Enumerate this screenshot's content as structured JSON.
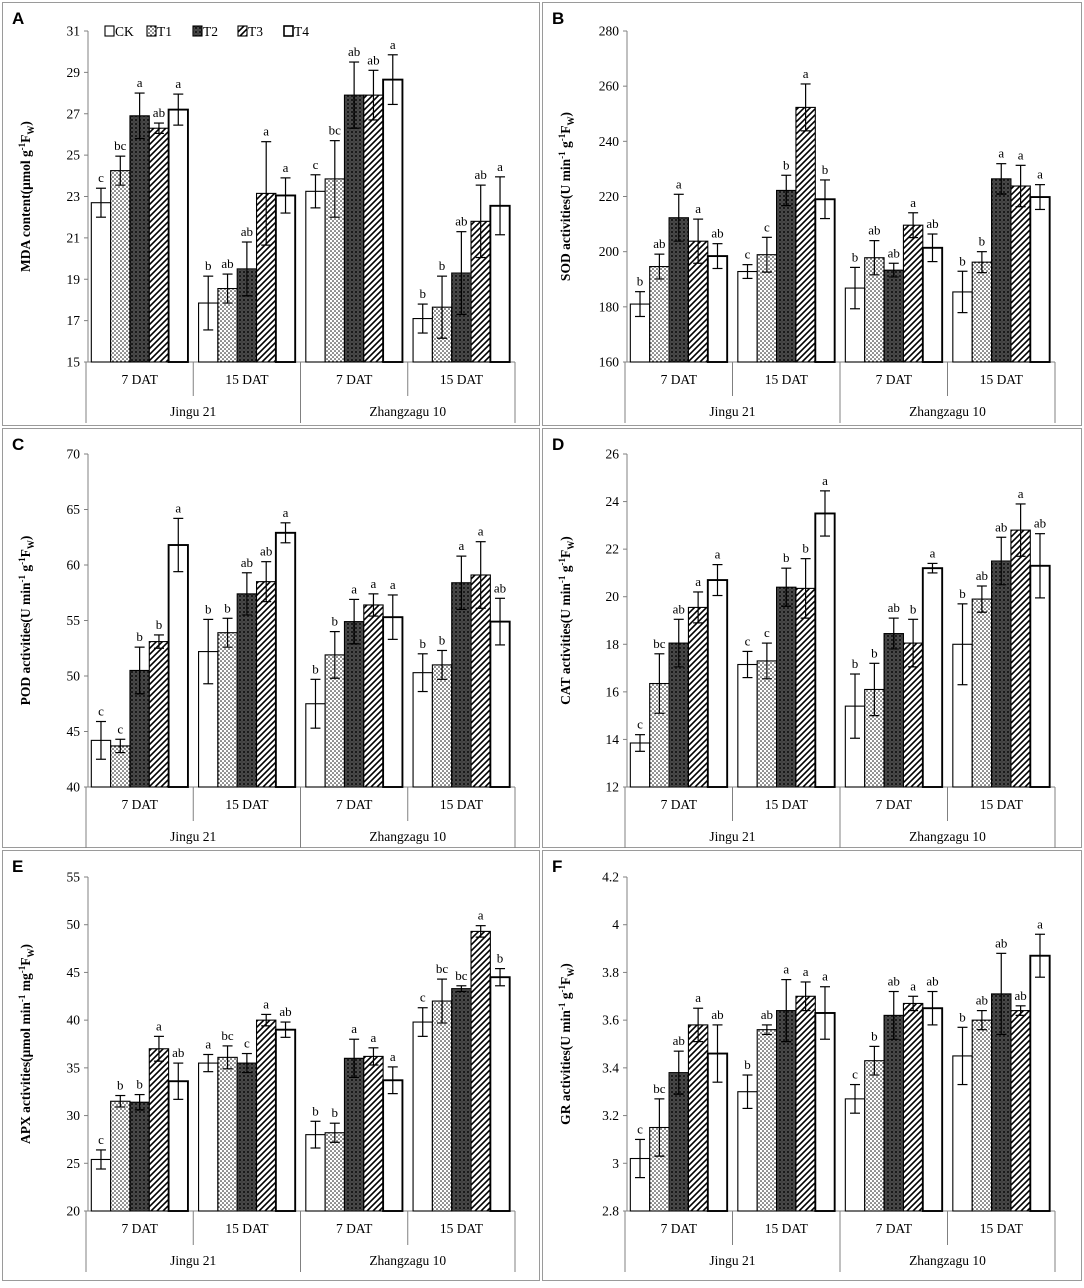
{
  "legend": [
    "CK",
    "T1",
    "T2",
    "T3",
    "T4"
  ],
  "chart_data": [
    {
      "panel": "A",
      "type": "bar",
      "ylabel_main": "MDA content(μmol g",
      "ylabel_sup": "-1",
      "ylabel_F": "F",
      "ylabel_sub": "W",
      "ylabel_end": ")",
      "ylim": [
        15,
        31
      ],
      "yticks": [
        "15",
        "17",
        "19",
        "21",
        "23",
        "25",
        "27",
        "29",
        "31"
      ],
      "groups": [
        "7 DAT",
        "15 DAT",
        "7 DAT",
        "15 DAT"
      ],
      "cultivars": [
        "Jingu 21",
        "Zhangzagu 10"
      ],
      "series": [
        {
          "name": "CK",
          "values": [
            22.7,
            17.85,
            23.25,
            17.1
          ],
          "errors": [
            0.7,
            1.3,
            0.8,
            0.7
          ],
          "letters": [
            "c",
            "b",
            "c",
            "b"
          ]
        },
        {
          "name": "T1",
          "values": [
            24.25,
            18.55,
            23.85,
            17.65
          ],
          "errors": [
            0.7,
            0.7,
            1.85,
            1.5
          ],
          "letters": [
            "bc",
            "ab",
            "bc",
            "b"
          ]
        },
        {
          "name": "T2",
          "values": [
            26.9,
            19.5,
            27.9,
            19.3
          ],
          "errors": [
            1.1,
            1.3,
            1.6,
            2.0
          ],
          "letters": [
            "a",
            "ab",
            "ab",
            "ab"
          ]
        },
        {
          "name": "T3",
          "values": [
            26.3,
            23.15,
            27.9,
            21.8
          ],
          "errors": [
            0.25,
            2.5,
            1.2,
            1.75
          ],
          "letters": [
            "ab",
            "a",
            "ab",
            "ab"
          ]
        },
        {
          "name": "T4",
          "values": [
            27.2,
            23.05,
            28.65,
            22.55
          ],
          "errors": [
            0.75,
            0.85,
            1.2,
            1.4
          ],
          "letters": [
            "a",
            "a",
            "a",
            "a"
          ]
        }
      ]
    },
    {
      "panel": "B",
      "type": "bar",
      "ylabel_main": "SOD activities(U min",
      "ylabel_sup": "-1",
      "ylabel_mid": " g",
      "ylabel_sup2": "-1",
      "ylabel_F": "F",
      "ylabel_sub": "W",
      "ylabel_end": ")",
      "ylim": [
        160,
        280
      ],
      "yticks": [
        "160",
        "180",
        "200",
        "220",
        "240",
        "260",
        "280"
      ],
      "groups": [
        "7 DAT",
        "15 DAT",
        "7 DAT",
        "15 DAT"
      ],
      "cultivars": [
        "Jingu 21",
        "Zhangzagu 10"
      ],
      "series": [
        {
          "name": "CK",
          "values": [
            181,
            192.8,
            186.8,
            185.4
          ],
          "errors": [
            4.5,
            2.5,
            7.5,
            7.5
          ],
          "letters": [
            "b",
            "c",
            "b",
            "b"
          ]
        },
        {
          "name": "T1",
          "values": [
            194.6,
            198.9,
            197.8,
            196.2
          ],
          "errors": [
            4.5,
            6.3,
            6.2,
            3.8
          ],
          "letters": [
            "ab",
            "c",
            "ab",
            "b"
          ]
        },
        {
          "name": "T2",
          "values": [
            212.3,
            222.2,
            193.3,
            226.4
          ],
          "errors": [
            8.5,
            5.5,
            2.5,
            5.5
          ],
          "letters": [
            "a",
            "b",
            "ab",
            "a"
          ]
        },
        {
          "name": "T3",
          "values": [
            203.8,
            252.3,
            209.6,
            223.8
          ],
          "errors": [
            8.0,
            8.5,
            4.5,
            7.5
          ],
          "letters": [
            "a",
            "a",
            "a",
            "a"
          ]
        },
        {
          "name": "T4",
          "values": [
            198.4,
            219,
            201.4,
            219.8
          ],
          "errors": [
            4.5,
            7,
            5,
            4.5
          ],
          "letters": [
            "ab",
            "b",
            "ab",
            "a"
          ]
        }
      ]
    },
    {
      "panel": "C",
      "type": "bar",
      "ylabel_main": "POD activities(U min",
      "ylabel_sup": "-1",
      "ylabel_mid": " g",
      "ylabel_sup2": "-1",
      "ylabel_F": "F",
      "ylabel_sub": "W",
      "ylabel_end": ")",
      "ylim": [
        40,
        70
      ],
      "yticks": [
        "40",
        "45",
        "50",
        "55",
        "60",
        "65",
        "70"
      ],
      "groups": [
        "7 DAT",
        "15 DAT",
        "7 DAT",
        "15 DAT"
      ],
      "cultivars": [
        "Jingu 21",
        "Zhangzagu 10"
      ],
      "series": [
        {
          "name": "CK",
          "values": [
            44.2,
            52.2,
            47.5,
            50.3
          ],
          "errors": [
            1.7,
            2.9,
            2.2,
            1.7
          ],
          "letters": [
            "c",
            "b",
            "b",
            "b"
          ]
        },
        {
          "name": "T1",
          "values": [
            43.7,
            53.9,
            51.9,
            51
          ],
          "errors": [
            0.6,
            1.3,
            2.1,
            1.3
          ],
          "letters": [
            "c",
            "b",
            "b",
            "b"
          ]
        },
        {
          "name": "T2",
          "values": [
            50.5,
            57.4,
            54.9,
            58.4
          ],
          "errors": [
            2.1,
            1.9,
            2.0,
            2.4
          ],
          "letters": [
            "b",
            "ab",
            "a",
            "a"
          ]
        },
        {
          "name": "T3",
          "values": [
            53.1,
            58.5,
            56.4,
            59.1
          ],
          "errors": [
            0.6,
            1.8,
            1.0,
            3.0
          ],
          "letters": [
            "b",
            "ab",
            "a",
            "a"
          ]
        },
        {
          "name": "T4",
          "values": [
            61.8,
            62.9,
            55.3,
            54.9
          ],
          "errors": [
            2.4,
            0.9,
            2.0,
            2.1
          ],
          "letters": [
            "a",
            "a",
            "a",
            "ab"
          ]
        }
      ]
    },
    {
      "panel": "D",
      "type": "bar",
      "ylabel_main": "CAT activities(U min",
      "ylabel_sup": "-1",
      "ylabel_mid": " g",
      "ylabel_sup2": "-1",
      "ylabel_F": "F",
      "ylabel_sub": "W",
      "ylabel_end": ")",
      "ylim": [
        12,
        26
      ],
      "yticks": [
        "12",
        "14",
        "16",
        "18",
        "20",
        "22",
        "24",
        "26"
      ],
      "groups": [
        "7 DAT",
        "15 DAT",
        "7 DAT",
        "15 DAT"
      ],
      "cultivars": [
        "Jingu 21",
        "Zhangzagu 10"
      ],
      "series": [
        {
          "name": "CK",
          "values": [
            13.85,
            17.15,
            15.4,
            18
          ],
          "errors": [
            0.35,
            0.55,
            1.35,
            1.7
          ],
          "letters": [
            "c",
            "c",
            "b",
            "b"
          ]
        },
        {
          "name": "T1",
          "values": [
            16.35,
            17.3,
            16.1,
            19.9
          ],
          "errors": [
            1.25,
            0.75,
            1.1,
            0.55
          ],
          "letters": [
            "bc",
            "c",
            "b",
            "ab"
          ]
        },
        {
          "name": "T2",
          "values": [
            18.05,
            20.4,
            18.45,
            21.5
          ],
          "errors": [
            1.0,
            0.8,
            0.65,
            1.0
          ],
          "letters": [
            "ab",
            "b",
            "ab",
            "ab"
          ]
        },
        {
          "name": "T3",
          "values": [
            19.55,
            20.35,
            18.05,
            22.8
          ],
          "errors": [
            0.65,
            1.25,
            1.0,
            1.1
          ],
          "letters": [
            "a",
            "b",
            "b",
            "a"
          ]
        },
        {
          "name": "T4",
          "values": [
            20.7,
            23.5,
            21.2,
            21.3
          ],
          "errors": [
            0.65,
            0.95,
            0.2,
            1.35
          ],
          "letters": [
            "a",
            "a",
            "a",
            "ab"
          ]
        }
      ]
    },
    {
      "panel": "E",
      "type": "bar",
      "ylabel_main": "APX activities(μmol min",
      "ylabel_sup": "-1",
      "ylabel_mid": " mg",
      "ylabel_sup2": "-1",
      "ylabel_F": "F",
      "ylabel_sub": "W",
      "ylabel_end": ")",
      "ylim": [
        20,
        55
      ],
      "yticks": [
        "20",
        "25",
        "30",
        "35",
        "40",
        "45",
        "50",
        "55"
      ],
      "groups": [
        "7 DAT",
        "15 DAT",
        "7 DAT",
        "15 DAT"
      ],
      "cultivars": [
        "Jingu 21",
        "Zhangzagu 10"
      ],
      "series": [
        {
          "name": "CK",
          "values": [
            25.4,
            35.5,
            28,
            39.8
          ],
          "errors": [
            1.0,
            0.9,
            1.4,
            1.5
          ],
          "letters": [
            "c",
            "a",
            "b",
            "c"
          ]
        },
        {
          "name": "T1",
          "values": [
            31.5,
            36.1,
            28.2,
            42
          ],
          "errors": [
            0.6,
            1.2,
            1.0,
            2.3
          ],
          "letters": [
            "b",
            "bc",
            "b",
            "bc"
          ]
        },
        {
          "name": "T2",
          "values": [
            31.4,
            35.5,
            36,
            43.3
          ],
          "errors": [
            0.8,
            1.0,
            2.0,
            0.3
          ],
          "letters": [
            "b",
            "c",
            "a",
            "bc"
          ]
        },
        {
          "name": "T3",
          "values": [
            37,
            40,
            36.2,
            49.3
          ],
          "errors": [
            1.3,
            0.6,
            0.9,
            0.6
          ],
          "letters": [
            "a",
            "a",
            "a",
            "a"
          ]
        },
        {
          "name": "T4",
          "values": [
            33.6,
            39,
            33.7,
            44.5
          ],
          "errors": [
            1.9,
            0.8,
            1.4,
            0.9
          ],
          "letters": [
            "ab",
            "ab",
            "a",
            "b"
          ]
        }
      ]
    },
    {
      "panel": "F",
      "type": "bar",
      "ylabel_main": "GR activities(U min",
      "ylabel_sup": "-1",
      "ylabel_mid": " g",
      "ylabel_sup2": "-1",
      "ylabel_F": "F",
      "ylabel_sub": "W",
      "ylabel_end": ")",
      "ylim": [
        2.8,
        4.2
      ],
      "yticks": [
        "2.8",
        "3",
        "3.2",
        "3.4",
        "3.6",
        "3.8",
        "4",
        "4.2"
      ],
      "groups": [
        "7 DAT",
        "15 DAT",
        "7 DAT",
        "15 DAT"
      ],
      "cultivars": [
        "Jingu 21",
        "Zhangzagu 10"
      ],
      "series": [
        {
          "name": "CK",
          "values": [
            3.02,
            3.3,
            3.27,
            3.45
          ],
          "errors": [
            0.08,
            0.07,
            0.06,
            0.12
          ],
          "letters": [
            "c",
            "b",
            "c",
            "b"
          ]
        },
        {
          "name": "T1",
          "values": [
            3.15,
            3.56,
            3.43,
            3.6
          ],
          "errors": [
            0.12,
            0.02,
            0.06,
            0.04
          ],
          "letters": [
            "bc",
            "ab",
            "b",
            "ab"
          ]
        },
        {
          "name": "T2",
          "values": [
            3.38,
            3.64,
            3.62,
            3.71
          ],
          "errors": [
            0.09,
            0.13,
            0.1,
            0.17
          ],
          "letters": [
            "ab",
            "a",
            "ab",
            "ab"
          ]
        },
        {
          "name": "T3",
          "values": [
            3.58,
            3.7,
            3.67,
            3.64
          ],
          "errors": [
            0.07,
            0.06,
            0.03,
            0.02
          ],
          "letters": [
            "a",
            "a",
            "a",
            "ab"
          ]
        },
        {
          "name": "T4",
          "values": [
            3.46,
            3.63,
            3.65,
            3.87
          ],
          "errors": [
            0.12,
            0.11,
            0.07,
            0.09
          ],
          "letters": [
            "ab",
            "a",
            "ab",
            "a"
          ]
        }
      ]
    }
  ]
}
